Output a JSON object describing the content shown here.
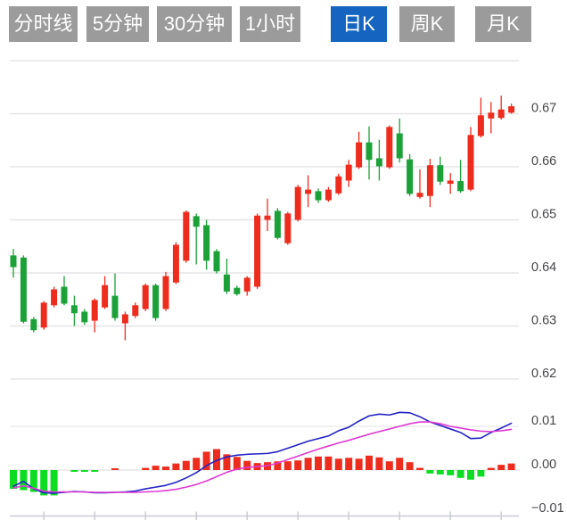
{
  "toolbar": {
    "tabs": [
      {
        "label": "分时线",
        "active": false
      },
      {
        "label": "5分钟",
        "active": false
      },
      {
        "label": "30分钟",
        "active": false
      },
      {
        "label": "1小时",
        "active": false
      },
      {
        "label": "日K",
        "active": true
      },
      {
        "label": "周K",
        "active": false
      },
      {
        "label": "月K",
        "active": false
      }
    ]
  },
  "chart_data": {
    "type": "candlestick_with_macd",
    "candle_format": "open,close,high,low",
    "main_panel": {
      "y_axis": {
        "tick_labels": [
          "0.67",
          "0.66",
          "0.65",
          "0.64",
          "0.63",
          "0.62"
        ],
        "tick_values": [
          0.67,
          0.66,
          0.65,
          0.64,
          0.63,
          0.62
        ],
        "top_grid_value": 0.68,
        "ylim": [
          0.6135,
          0.68
        ]
      },
      "candles": [
        [
          0.6433,
          0.6411,
          0.6445,
          0.6391
        ],
        [
          0.6429,
          0.6308,
          0.6433,
          0.6305
        ],
        [
          0.6313,
          0.6292,
          0.6317,
          0.6288
        ],
        [
          0.6297,
          0.6344,
          0.6347,
          0.6293
        ],
        [
          0.6339,
          0.6369,
          0.6374,
          0.6335
        ],
        [
          0.6374,
          0.6342,
          0.6394,
          0.6339
        ],
        [
          0.6339,
          0.6324,
          0.6357,
          0.63
        ],
        [
          0.6327,
          0.6307,
          0.6332,
          0.6302
        ],
        [
          0.631,
          0.6349,
          0.6352,
          0.6288
        ],
        [
          0.6335,
          0.6377,
          0.6394,
          0.6332
        ],
        [
          0.6357,
          0.6315,
          0.6399,
          0.631
        ],
        [
          0.6305,
          0.6322,
          0.6327,
          0.6273
        ],
        [
          0.6319,
          0.6339,
          0.6344,
          0.6315
        ],
        [
          0.6332,
          0.6377,
          0.638,
          0.6328
        ],
        [
          0.6377,
          0.6315,
          0.638,
          0.631
        ],
        [
          0.6332,
          0.6394,
          0.6402,
          0.6328
        ],
        [
          0.6382,
          0.6453,
          0.6458,
          0.6379
        ],
        [
          0.6423,
          0.6515,
          0.6518,
          0.6419
        ],
        [
          0.6507,
          0.6487,
          0.6512,
          0.6416
        ],
        [
          0.649,
          0.6423,
          0.65,
          0.6406
        ],
        [
          0.6441,
          0.6403,
          0.6445,
          0.6399
        ],
        [
          0.6397,
          0.6365,
          0.6427,
          0.636
        ],
        [
          0.6372,
          0.636,
          0.6376,
          0.6357
        ],
        [
          0.6365,
          0.6391,
          0.6394,
          0.6357
        ],
        [
          0.6374,
          0.6508,
          0.6512,
          0.637
        ],
        [
          0.65,
          0.6508,
          0.654,
          0.6479
        ],
        [
          0.6517,
          0.6466,
          0.6522,
          0.6463
        ],
        [
          0.6456,
          0.6512,
          0.6515,
          0.6453
        ],
        [
          0.65,
          0.6562,
          0.6566,
          0.6497
        ],
        [
          0.6549,
          0.6557,
          0.6584,
          0.6524
        ],
        [
          0.6554,
          0.6537,
          0.6559,
          0.6532
        ],
        [
          0.6537,
          0.6557,
          0.6562,
          0.6534
        ],
        [
          0.655,
          0.6582,
          0.6587,
          0.6547
        ],
        [
          0.6574,
          0.6604,
          0.6613,
          0.6562
        ],
        [
          0.6599,
          0.6646,
          0.6666,
          0.6596
        ],
        [
          0.6646,
          0.6613,
          0.6676,
          0.6576
        ],
        [
          0.6616,
          0.6601,
          0.6651,
          0.6574
        ],
        [
          0.6599,
          0.6675,
          0.6678,
          0.6596
        ],
        [
          0.6663,
          0.6616,
          0.6691,
          0.6608
        ],
        [
          0.6614,
          0.6549,
          0.6624,
          0.6545
        ],
        [
          0.6543,
          0.6551,
          0.6595,
          0.654
        ],
        [
          0.6545,
          0.6603,
          0.6615,
          0.6524
        ],
        [
          0.6603,
          0.6572,
          0.6619,
          0.6566
        ],
        [
          0.6568,
          0.6574,
          0.6588,
          0.6549
        ],
        [
          0.6573,
          0.6554,
          0.6613,
          0.6551
        ],
        [
          0.6557,
          0.666,
          0.6675,
          0.6554
        ],
        [
          0.6658,
          0.6697,
          0.673,
          0.6655
        ],
        [
          0.6691,
          0.6702,
          0.6722,
          0.6663
        ],
        [
          0.6692,
          0.6708,
          0.6734,
          0.6689
        ],
        [
          0.6702,
          0.6714,
          0.6719,
          0.67
        ]
      ]
    },
    "macd_panel": {
      "y_axis": {
        "tick_labels": [
          "0.01",
          "0.00",
          "−0.01"
        ],
        "tick_values": [
          0.01,
          0.0,
          -0.01
        ],
        "ylim": [
          -0.011,
          0.02
        ]
      },
      "histogram": [
        -0.0043,
        -0.0046,
        -0.005,
        -0.0058,
        -0.0058,
        0,
        -0.0004,
        -0.0004,
        -0.0004,
        0,
        0.0004,
        0,
        0,
        0.0005,
        0.001,
        0.0008,
        0.0015,
        0.0021,
        0.0028,
        0.0042,
        0.0048,
        0.0036,
        0.003,
        0.0021,
        0.0016,
        0.0018,
        0.002,
        0.002,
        0.0022,
        0.0028,
        0.0031,
        0.0031,
        0.0026,
        0.0028,
        0.0026,
        0.0033,
        0.0029,
        0.002,
        0.0028,
        0.0018,
        0.0005,
        -0.0008,
        -0.001,
        -0.0012,
        -0.0018,
        -0.0022,
        -0.0015,
        0.0005,
        0.0012,
        0.0015
      ],
      "dif": [
        -0.0037,
        -0.0026,
        -0.0043,
        -0.0052,
        -0.0053,
        -0.0051,
        -0.0049,
        -0.005,
        -0.0052,
        -0.0052,
        -0.0051,
        -0.005,
        -0.0048,
        -0.0043,
        -0.0039,
        -0.0035,
        -0.0028,
        -0.0018,
        -0.0006,
        0.001,
        0.0022,
        0.003,
        0.0034,
        0.0036,
        0.0037,
        0.0038,
        0.0042,
        0.005,
        0.0058,
        0.0066,
        0.0072,
        0.0078,
        0.009,
        0.0098,
        0.0112,
        0.0124,
        0.0128,
        0.0126,
        0.0132,
        0.0131,
        0.0122,
        0.011,
        0.0102,
        0.0094,
        0.0086,
        0.0072,
        0.0073,
        0.0086,
        0.0096,
        0.0107
      ],
      "dea": [
        -0.0041,
        -0.0036,
        -0.0042,
        -0.0048,
        -0.005,
        -0.005,
        -0.005,
        -0.005,
        -0.0051,
        -0.0051,
        -0.0051,
        -0.0051,
        -0.0051,
        -0.005,
        -0.0049,
        -0.0047,
        -0.0044,
        -0.0039,
        -0.0033,
        -0.0025,
        -0.0015,
        -0.0005,
        0.0002,
        0.0006,
        0.0008,
        0.001,
        0.0016,
        0.0024,
        0.0032,
        0.004,
        0.0048,
        0.0055,
        0.0062,
        0.0068,
        0.0075,
        0.0082,
        0.0088,
        0.0094,
        0.01,
        0.0106,
        0.011,
        0.011,
        0.0106,
        0.01,
        0.0096,
        0.0092,
        0.0089,
        0.0088,
        0.009,
        0.0093
      ],
      "x_tick_indices": [
        3,
        8,
        13,
        18,
        23,
        28,
        33,
        38,
        43,
        48
      ]
    },
    "colors": {
      "up": "#ee2c1e",
      "down": "#1ba138",
      "hist_up": "#ee2c1e",
      "hist_down": "#0ddd22",
      "dif_line": "#2222c4",
      "dea_line": "#de3ad4",
      "grid": "#e6e6e8",
      "zero_line": "#e2e2e4",
      "bottom_axis": "#c9c9d2",
      "axis_label": "#46464a",
      "tab_bg": "#9b9b9b",
      "tab_active_bg": "#1565c0",
      "tab_text": "#ffffff"
    }
  }
}
